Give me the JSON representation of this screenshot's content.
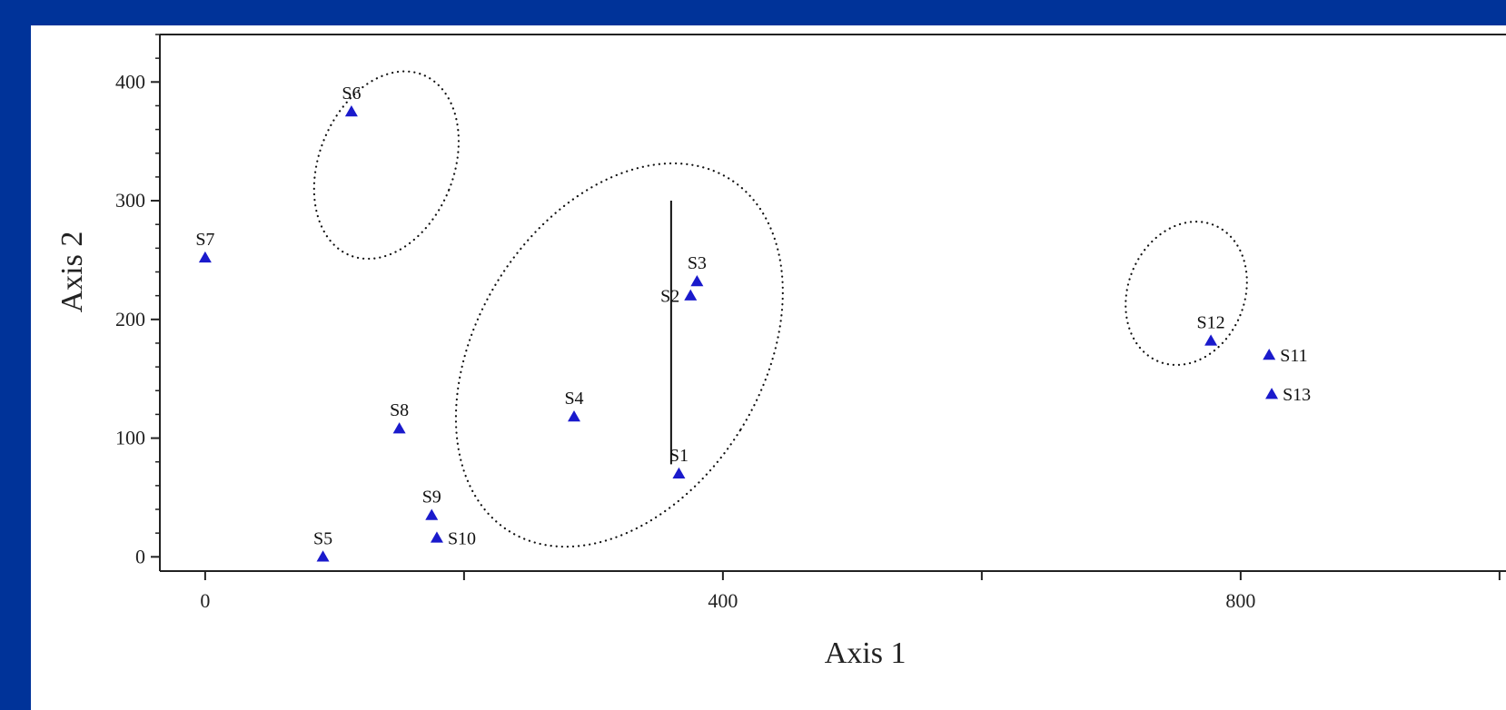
{
  "chart_data": {
    "type": "scatter",
    "title": "",
    "xlabel": "Axis 1",
    "ylabel": "Axis 2",
    "xlim": [
      -35,
      1005
    ],
    "ylim": [
      -12,
      440
    ],
    "x_ticks": [
      0,
      400,
      800
    ],
    "x_minor_ticks": [
      200,
      600,
      1000
    ],
    "y_ticks": [
      0,
      100,
      200,
      300,
      400
    ],
    "y_minor_step": 20,
    "grid": false,
    "marker": "triangle",
    "marker_color": "#1a1acc",
    "points": [
      {
        "label": "S1",
        "x": 366,
        "y": 70,
        "label_pos": "above"
      },
      {
        "label": "S2",
        "x": 375,
        "y": 220,
        "label_pos": "left"
      },
      {
        "label": "S3",
        "x": 380,
        "y": 232,
        "label_pos": "above"
      },
      {
        "label": "S4",
        "x": 285,
        "y": 118,
        "label_pos": "above"
      },
      {
        "label": "S5",
        "x": 91,
        "y": 0,
        "label_pos": "above"
      },
      {
        "label": "S6",
        "x": 113,
        "y": 375,
        "label_pos": "above"
      },
      {
        "label": "S7",
        "x": 0,
        "y": 252,
        "label_pos": "above"
      },
      {
        "label": "S8",
        "x": 150,
        "y": 108,
        "label_pos": "above"
      },
      {
        "label": "S9",
        "x": 175,
        "y": 35,
        "label_pos": "above"
      },
      {
        "label": "S10",
        "x": 179,
        "y": 16,
        "label_pos": "right"
      },
      {
        "label": "S11",
        "x": 822,
        "y": 170,
        "label_pos": "right"
      },
      {
        "label": "S12",
        "x": 777,
        "y": 182,
        "label_pos": "above"
      },
      {
        "label": "S13",
        "x": 824,
        "y": 137,
        "label_pos": "right"
      }
    ],
    "ellipses": [
      {
        "cx": 140,
        "cy": 330,
        "rx": 52,
        "ry": 82,
        "rotate_deg": 22
      },
      {
        "cx": 320,
        "cy": 170,
        "rx": 110,
        "ry": 175,
        "rotate_deg": 32
      },
      {
        "cx": 758,
        "cy": 222,
        "rx": 45,
        "ry": 62,
        "rotate_deg": 22
      }
    ],
    "reference_line": {
      "x": 360,
      "y1": 78,
      "y2": 300
    }
  }
}
